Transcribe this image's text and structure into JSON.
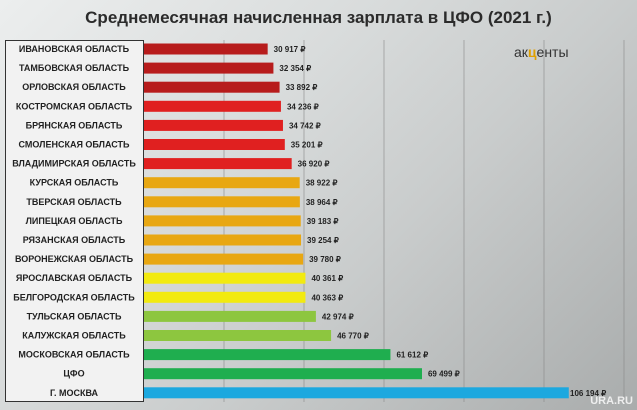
{
  "chart_data": {
    "type": "bar",
    "orientation": "horizontal",
    "title": "Среднемесячная начисленная зарплата в ЦФО (2021 г.)",
    "categories": [
      "ИВАНОВСКАЯ ОБЛАСТЬ",
      "ТАМБОВСКАЯ ОБЛАСТЬ",
      "ОРЛОВСКАЯ ОБЛАСТЬ",
      "КОСТРОМСКАЯ ОБЛАСТЬ",
      "БРЯНСКАЯ ОБЛАСТЬ",
      "СМОЛЕНСКАЯ ОБЛАСТЬ",
      "ВЛАДИМИРСКАЯ ОБЛАСТЬ",
      "КУРСКАЯ ОБЛАСТЬ",
      "ТВЕРСКАЯ ОБЛАСТЬ",
      "ЛИПЕЦКАЯ ОБЛАСТЬ",
      "РЯЗАНСКАЯ ОБЛАСТЬ",
      "ВОРОНЕЖСКАЯ ОБЛАСТЬ",
      "ЯРОСЛАВСКАЯ ОБЛАСТЬ",
      "БЕЛГОРОДСКАЯ ОБЛАСТЬ",
      "ТУЛЬСКАЯ ОБЛАСТЬ",
      "КАЛУЖСКАЯ ОБЛАСТЬ",
      "МОСКОВСКАЯ ОБЛАСТЬ",
      "ЦФО",
      "Г. МОСКВА"
    ],
    "values": [
      30917,
      32354,
      33892,
      34236,
      34742,
      35201,
      36920,
      38922,
      38964,
      39183,
      39254,
      39780,
      40361,
      40363,
      42974,
      46770,
      61612,
      69499,
      106194
    ],
    "value_labels": [
      "30 917 ₽",
      "32 354 ₽",
      "33 892 ₽",
      "34 236 ₽",
      "34 742 ₽",
      "35 201 ₽",
      "36 920 ₽",
      "38 922 ₽",
      "38 964 ₽",
      "39 183 ₽",
      "39 254 ₽",
      "39 780 ₽",
      "40 361 ₽",
      "40 363 ₽",
      "42 974 ₽",
      "46 770 ₽",
      "61 612 ₽",
      "69 499 ₽",
      "106 194 ₽"
    ],
    "colors": [
      "#b71c1c",
      "#b71c1c",
      "#b71c1c",
      "#e02020",
      "#e02020",
      "#e02020",
      "#e02020",
      "#e8a712",
      "#e8a712",
      "#e8a712",
      "#e8a712",
      "#e8a712",
      "#f2ea10",
      "#f2ea10",
      "#8dc63f",
      "#8dc63f",
      "#1fae4f",
      "#1fae4f",
      "#1ca8df"
    ],
    "xlim": [
      0,
      120000
    ],
    "grid": true,
    "xlabel": "",
    "ylabel": ""
  },
  "logo": {
    "pre": "ак",
    "mid": "ц",
    "post": "енты"
  },
  "watermark": "URA.RU"
}
